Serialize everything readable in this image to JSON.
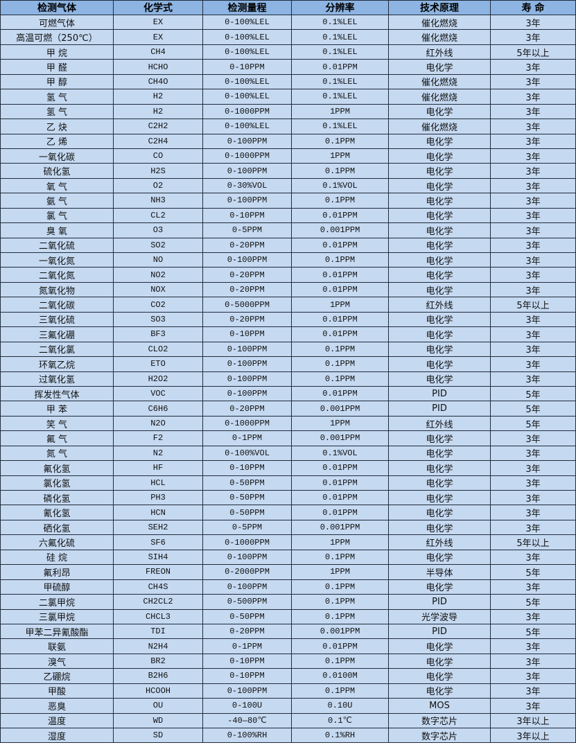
{
  "colors": {
    "header_bg": "#8db4e2",
    "row_bg": "#c5d9f1",
    "border": "#1f2b3a"
  },
  "table": {
    "headers": [
      "检测气体",
      "化学式",
      "检测量程",
      "分辨率",
      "技术原理",
      "寿 命"
    ],
    "rows": [
      [
        "可燃气体",
        "EX",
        "0-100%LEL",
        "0.1%LEL",
        "催化燃烧",
        "3年"
      ],
      [
        "高温可燃（250℃）",
        "EX",
        "0-100%LEL",
        "0.1%LEL",
        "催化燃烧",
        "3年"
      ],
      [
        "甲 烷",
        "CH4",
        "0-100%LEL",
        "0.1%LEL",
        "红外线",
        "5年以上"
      ],
      [
        "甲 醛",
        "HCHO",
        "0-10PPM",
        "0.01PPM",
        "电化学",
        "3年"
      ],
      [
        "甲 醇",
        "CH4O",
        "0-100%LEL",
        "0.1%LEL",
        "催化燃烧",
        "3年"
      ],
      [
        "氢 气",
        "H2",
        "0-100%LEL",
        "0.1%LEL",
        "催化燃烧",
        "3年"
      ],
      [
        "氢 气",
        "H2",
        "0-1000PPM",
        "1PPM",
        "电化学",
        "3年"
      ],
      [
        "乙 炔",
        "C2H2",
        "0-100%LEL",
        "0.1%LEL",
        "催化燃烧",
        "3年"
      ],
      [
        "乙 烯",
        "C2H4",
        "0-100PPM",
        "0.1PPM",
        "电化学",
        "3年"
      ],
      [
        "一氧化碳",
        "CO",
        "0-1000PPM",
        "1PPM",
        "电化学",
        "3年"
      ],
      [
        "硫化氢",
        "H2S",
        "0-100PPM",
        "0.1PPM",
        "电化学",
        "3年"
      ],
      [
        "氧 气",
        "O2",
        "0-30%VOL",
        "0.1%VOL",
        "电化学",
        "3年"
      ],
      [
        "氨 气",
        "NH3",
        "0-100PPM",
        "0.1PPM",
        "电化学",
        "3年"
      ],
      [
        "氯 气",
        "CL2",
        "0-10PPM",
        "0.01PPM",
        "电化学",
        "3年"
      ],
      [
        "臭 氧",
        "O3",
        "0-5PPM",
        "0.001PPM",
        "电化学",
        "3年"
      ],
      [
        "二氧化硫",
        "SO2",
        "0-20PPM",
        "0.01PPM",
        "电化学",
        "3年"
      ],
      [
        "一氧化氮",
        "NO",
        "0-100PPM",
        "0.1PPM",
        "电化学",
        "3年"
      ],
      [
        "二氧化氮",
        "NO2",
        "0-20PPM",
        "0.01PPM",
        "电化学",
        "3年"
      ],
      [
        "氮氧化物",
        "NOX",
        "0-20PPM",
        "0.01PPM",
        "电化学",
        "3年"
      ],
      [
        "二氧化碳",
        "CO2",
        "0-5000PPM",
        "1PPM",
        "红外线",
        "5年以上"
      ],
      [
        "三氧化硫",
        "SO3",
        "0-20PPM",
        "0.01PPM",
        "电化学",
        "3年"
      ],
      [
        "三氟化硼",
        "BF3",
        "0-10PPM",
        "0.01PPM",
        "电化学",
        "3年"
      ],
      [
        "二氧化氯",
        "CLO2",
        "0-100PPM",
        "0.1PPM",
        "电化学",
        "3年"
      ],
      [
        "环氧乙烷",
        "ETO",
        "0-100PPM",
        "0.1PPM",
        "电化学",
        "3年"
      ],
      [
        "过氧化氢",
        "H2O2",
        "0-100PPM",
        "0.1PPM",
        "电化学",
        "3年"
      ],
      [
        "挥发性气体",
        "VOC",
        "0-100PPM",
        "0.01PPM",
        "PID",
        "5年"
      ],
      [
        "甲 苯",
        "C6H6",
        "0-20PPM",
        "0.001PPM",
        "PID",
        "5年"
      ],
      [
        "笑 气",
        "N2O",
        "0-1000PPM",
        "1PPM",
        "红外线",
        "5年"
      ],
      [
        "氟 气",
        "F2",
        "0-1PPM",
        "0.001PPM",
        "电化学",
        "3年"
      ],
      [
        "氮 气",
        "N2",
        "0-100%VOL",
        "0.1%VOL",
        "电化学",
        "3年"
      ],
      [
        "氟化氢",
        "HF",
        "0-10PPM",
        "0.01PPM",
        "电化学",
        "3年"
      ],
      [
        "氯化氢",
        "HCL",
        "0-50PPM",
        "0.01PPM",
        "电化学",
        "3年"
      ],
      [
        "磷化氢",
        "PH3",
        "0-50PPM",
        "0.01PPM",
        "电化学",
        "3年"
      ],
      [
        "氰化氢",
        "HCN",
        "0-50PPM",
        "0.01PPM",
        "电化学",
        "3年"
      ],
      [
        "硒化氢",
        "SEH2",
        "0-5PPM",
        "0.001PPM",
        "电化学",
        "3年"
      ],
      [
        "六氟化硫",
        "SF6",
        "0-1000PPM",
        "1PPM",
        "红外线",
        "5年以上"
      ],
      [
        "硅 烷",
        "SIH4",
        "0-100PPM",
        "0.1PPM",
        "电化学",
        "3年"
      ],
      [
        "氟利昂",
        "FREON",
        "0-2000PPM",
        "1PPM",
        "半导体",
        "5年"
      ],
      [
        "甲硫醇",
        "CH4S",
        "0-100PPM",
        "0.1PPM",
        "电化学",
        "3年"
      ],
      [
        "二氯甲烷",
        "CH2CL2",
        "0-500PPM",
        "0.1PPM",
        "PID",
        "5年"
      ],
      [
        "三氯甲烷",
        "CHCL3",
        "0-50PPM",
        "0.1PPM",
        "光学波导",
        "3年"
      ],
      [
        "甲苯二异氰酸酯",
        "TDI",
        "0-20PPM",
        "0.001PPM",
        "PID",
        "5年"
      ],
      [
        "联氨",
        "N2H4",
        "0-1PPM",
        "0.01PPM",
        "电化学",
        "3年"
      ],
      [
        "溴气",
        "BR2",
        "0-10PPM",
        "0.1PPM",
        "电化学",
        "3年"
      ],
      [
        "乙硼烷",
        "B2H6",
        "0-10PPM",
        "0.0100M",
        "电化学",
        "3年"
      ],
      [
        "甲酸",
        "HCOOH",
        "0-100PPM",
        "0.1PPM",
        "电化学",
        "3年"
      ],
      [
        "恶臭",
        "OU",
        "0-100U",
        "0.10U",
        "MOS",
        "3年"
      ],
      [
        "温度",
        "WD",
        "-40—80℃",
        "0.1℃",
        "数字芯片",
        "3年以上"
      ],
      [
        "湿度",
        "SD",
        "0-100%RH",
        "0.1%RH",
        "数字芯片",
        "3年以上"
      ]
    ]
  }
}
